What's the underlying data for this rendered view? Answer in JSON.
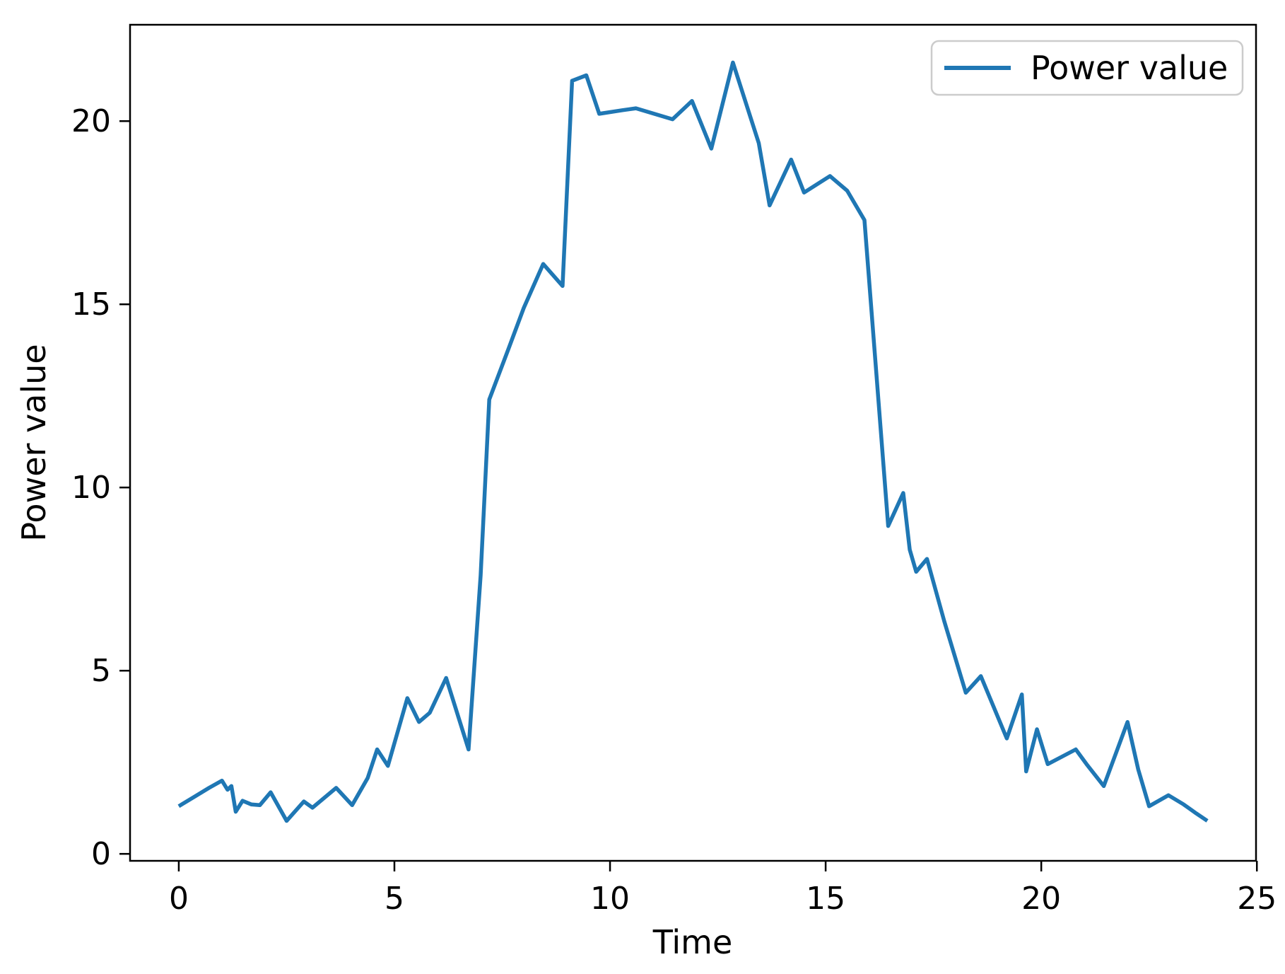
{
  "chart_data": {
    "type": "line",
    "title": "",
    "xlabel": "Time",
    "ylabel": "Power value",
    "grid": false,
    "xlim": [
      -1.13,
      24.98
    ],
    "ylim": [
      -0.19,
      22.63
    ],
    "x_ticks": [
      0,
      5,
      10,
      15,
      20,
      25
    ],
    "y_ticks": [
      0,
      5,
      10,
      15,
      20
    ],
    "legend": {
      "position": "upper right",
      "edge_color": "#cccccc",
      "entries": [
        "Power value"
      ]
    },
    "series": [
      {
        "name": "Power value",
        "color": "#1f77b4",
        "x": [
          0,
          0.35,
          0.7,
          1.0,
          1.13,
          1.22,
          1.32,
          1.48,
          1.68,
          1.88,
          2.13,
          2.5,
          2.9,
          3.1,
          3.65,
          4.02,
          4.38,
          4.6,
          4.85,
          5.3,
          5.57,
          5.82,
          6.2,
          6.72,
          7.0,
          7.2,
          7.65,
          8.0,
          8.45,
          8.9,
          9.12,
          9.45,
          9.75,
          10.3,
          10.6,
          11.45,
          11.9,
          12.35,
          12.85,
          13.45,
          13.7,
          14.2,
          14.5,
          15.1,
          15.5,
          15.9,
          16.45,
          16.8,
          16.95,
          17.1,
          17.35,
          17.75,
          18.25,
          18.6,
          19.2,
          19.55,
          19.65,
          19.9,
          20.15,
          20.8,
          21.05,
          21.45,
          22.0,
          22.25,
          22.5,
          22.95,
          23.3,
          23.6,
          23.85
        ],
        "y": [
          1.3,
          1.55,
          1.8,
          2.0,
          1.75,
          1.85,
          1.15,
          1.45,
          1.35,
          1.33,
          1.68,
          0.9,
          1.43,
          1.26,
          1.8,
          1.33,
          2.07,
          2.85,
          2.4,
          4.25,
          3.6,
          3.85,
          4.8,
          2.85,
          7.6,
          12.4,
          13.8,
          14.9,
          16.1,
          15.5,
          21.1,
          21.25,
          20.2,
          20.3,
          20.35,
          20.05,
          20.55,
          19.25,
          21.6,
          19.4,
          17.7,
          18.95,
          18.05,
          18.5,
          18.1,
          17.3,
          8.95,
          9.85,
          8.3,
          7.7,
          8.05,
          6.35,
          4.4,
          4.85,
          3.15,
          4.35,
          2.25,
          3.4,
          2.45,
          2.85,
          2.45,
          1.85,
          3.6,
          2.3,
          1.3,
          1.6,
          1.35,
          1.1,
          0.9
        ]
      }
    ]
  },
  "figure": {
    "background": "#ffffff",
    "spine_color": "#000000",
    "text_color": "#000000"
  }
}
